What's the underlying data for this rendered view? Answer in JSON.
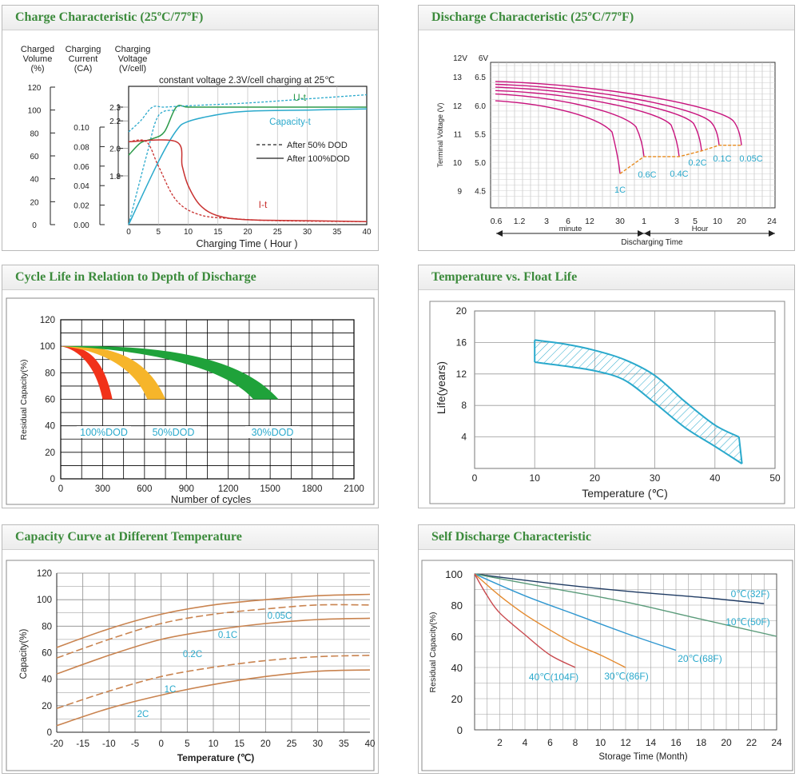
{
  "colors": {
    "title_green": "#3c8b3c",
    "grid": "#7a7a7a",
    "teal": "#2aa9cc",
    "magenta": "#c8137d",
    "orange": "#e88b1e",
    "copper": "#c9834f",
    "red": "#c8302f",
    "green": "#2d9a4a",
    "navy": "#1f3b63"
  },
  "chart_data": [
    {
      "id": "charge",
      "type": "line",
      "title": "Charge Characteristic (25ºC/77ºF)",
      "header_cols": [
        [
          "Charged",
          "Volume",
          "(%)"
        ],
        [
          "Charging",
          "Current",
          "(CA)"
        ],
        [
          "Charging",
          "Voltage",
          "(V/cell)"
        ]
      ],
      "subtitle": "constant voltage 2.3V/cell charging at 25℃",
      "xlabel": "Charging Time ( Hour )",
      "x_ticks": [
        "0",
        "5",
        "10",
        "15",
        "20",
        "25",
        "30",
        "35",
        "40"
      ],
      "volume_ticks": [
        "120",
        "100",
        "80",
        "60",
        "40",
        "20",
        "0"
      ],
      "current_ticks": [
        "0.10",
        "0.08",
        "0.06",
        "0.04",
        "0.02",
        "0.00"
      ],
      "voltage_ticks": [
        "2.3",
        "2.2",
        "2.0",
        "1.8"
      ],
      "xlim": [
        0,
        40
      ],
      "curve_labels": {
        "voltage": "U-t",
        "capacity": "Capacity-t",
        "current": "I-t"
      },
      "legend": [
        "After 50% DOD",
        "After 100%DOD"
      ],
      "series": [
        {
          "name": "U-t (100% DOD)",
          "x": [
            0,
            2,
            4,
            6,
            8,
            10,
            15,
            20,
            30,
            40
          ],
          "y_volts": [
            1.95,
            2.04,
            2.07,
            2.12,
            2.3,
            2.3,
            2.3,
            2.3,
            2.3,
            2.3
          ]
        },
        {
          "name": "U-t (50% DOD)",
          "x": [
            0,
            2,
            4,
            6,
            10,
            20,
            30,
            40
          ],
          "y_volts": [
            2.12,
            2.2,
            2.3,
            2.3,
            2.31,
            2.33,
            2.36,
            2.39
          ]
        },
        {
          "name": "Capacity-t (100% DOD)",
          "x": [
            0,
            5,
            8,
            10,
            15,
            20,
            30,
            40
          ],
          "y_pct": [
            0,
            55,
            82,
            90,
            96,
            99,
            100,
            101
          ]
        },
        {
          "name": "Capacity-t (50% DOD)",
          "x": [
            0,
            3,
            5,
            8
          ],
          "y_pct": [
            0,
            60,
            95,
            100
          ]
        },
        {
          "name": "I-t (100% DOD)",
          "x": [
            0,
            8,
            9,
            10,
            12,
            15,
            20,
            30,
            40
          ],
          "y_ca": [
            0.085,
            0.085,
            0.06,
            0.04,
            0.02,
            0.009,
            0.005,
            0.004,
            0.003
          ]
        },
        {
          "name": "I-t (50% DOD)",
          "x": [
            0,
            3,
            5,
            8,
            12,
            18,
            25,
            40
          ],
          "y_ca": [
            0.085,
            0.085,
            0.06,
            0.025,
            0.01,
            0.006,
            0.004,
            0.003
          ]
        }
      ]
    },
    {
      "id": "discharge",
      "type": "line",
      "title": "Discharge Characteristic (25ºC/77ºF)",
      "ylabel": "Terminal Voltage (V)",
      "axis_head": [
        "12V",
        "6V"
      ],
      "y_ticks_12v": [
        "13",
        "12",
        "11",
        "10",
        "9"
      ],
      "y_ticks_6v": [
        "6.5",
        "6.0",
        "5.5",
        "5.0",
        "4.5"
      ],
      "ylim_6v": [
        4.2,
        6.7
      ],
      "x_ticks": [
        "0.6",
        "1.2",
        "3",
        "6",
        "12",
        "30",
        "1",
        "3",
        "5",
        "10",
        "20",
        "24"
      ],
      "x_units": [
        "minute",
        "Hour"
      ],
      "xlabel": "Discharging Time",
      "rate_labels": [
        "1C",
        "0.6C",
        "0.4C",
        "0.2C",
        "0.1C",
        "0.05C"
      ],
      "end_voltage_6v": [
        4.8,
        5.1,
        5.1,
        5.2,
        5.3,
        5.3
      ]
    },
    {
      "id": "cycle",
      "type": "area",
      "title": "Cycle Life in Relation to Depth of Discharge",
      "xlabel": "Number of cycles",
      "ylabel": "Residual Capacity(%)",
      "x_ticks": [
        "0",
        "300",
        "600",
        "900",
        "1200",
        "1500",
        "1800",
        "2100"
      ],
      "y_ticks": [
        "120",
        "100",
        "80",
        "60",
        "40",
        "20",
        "0"
      ],
      "xlim": [
        0,
        2100
      ],
      "ylim": [
        0,
        120
      ],
      "series": [
        {
          "name": "100%DOD",
          "end_cycles": [
            300,
            370
          ]
        },
        {
          "name": "50%DOD",
          "end_cycles": [
            620,
            750
          ]
        },
        {
          "name": "30%DOD",
          "end_cycles": [
            1380,
            1560
          ]
        }
      ]
    },
    {
      "id": "float",
      "type": "area",
      "title": "Temperature vs. Float Life",
      "xlabel": "Temperature (℃)",
      "ylabel": "Life(years)",
      "x_ticks": [
        "0",
        "10",
        "20",
        "30",
        "40",
        "50"
      ],
      "y_ticks": [
        "20",
        "16",
        "12",
        "8",
        "4"
      ],
      "xlim": [
        0,
        50
      ],
      "ylim": [
        0,
        20
      ],
      "upper": {
        "x": [
          10,
          15,
          20,
          25,
          30,
          35,
          40,
          44
        ],
        "y": [
          16.3,
          15.8,
          15,
          13.8,
          11.8,
          8.5,
          5.5,
          4
        ]
      },
      "lower": {
        "x": [
          10,
          15,
          20,
          25,
          30,
          35,
          40,
          44.5
        ],
        "y": [
          13.5,
          13,
          12.4,
          11.2,
          8.3,
          5.2,
          2.8,
          0.6
        ]
      }
    },
    {
      "id": "temperature",
      "type": "line",
      "title": "Capacity Curve at Different Temperature",
      "xlabel": "Temperature (℃)",
      "ylabel": "Capacity(%)",
      "x_ticks": [
        "-20",
        "-15",
        "-10",
        "-5",
        "0",
        "5",
        "10",
        "15",
        "20",
        "25",
        "30",
        "35",
        "40"
      ],
      "y_ticks": [
        "120",
        "100",
        "80",
        "60",
        "40",
        "20",
        "0"
      ],
      "xlim": [
        -20,
        40
      ],
      "ylim": [
        0,
        120
      ],
      "series": [
        {
          "name": "0.05C",
          "x": [
            -20,
            -10,
            0,
            10,
            20,
            30,
            40
          ],
          "y": [
            64,
            78,
            89,
            96,
            100,
            103,
            104
          ]
        },
        {
          "name": "0.1C",
          "x": [
            -20,
            -10,
            0,
            10,
            20,
            30,
            40
          ],
          "y": [
            56,
            70,
            82,
            89,
            93,
            96,
            96
          ]
        },
        {
          "name": "0.2C",
          "x": [
            -20,
            -10,
            0,
            10,
            20,
            30,
            40
          ],
          "y": [
            44,
            58,
            70,
            77,
            82,
            85,
            86
          ]
        },
        {
          "name": "1C",
          "x": [
            -20,
            -10,
            0,
            10,
            20,
            30,
            40
          ],
          "y": [
            18,
            31,
            42,
            49,
            54,
            57,
            58
          ]
        },
        {
          "name": "2C",
          "x": [
            -20,
            -10,
            0,
            10,
            20,
            30,
            40
          ],
          "y": [
            5,
            18,
            28,
            36,
            42,
            46,
            47
          ]
        }
      ]
    },
    {
      "id": "self",
      "type": "line",
      "title": "Self Discharge Characteristic",
      "xlabel": "Storage Time (Month)",
      "ylabel": "Residual Capacity(%)",
      "x_ticks": [
        "2",
        "4",
        "6",
        "8",
        "10",
        "12",
        "14",
        "16",
        "18",
        "20",
        "22",
        "24"
      ],
      "y_ticks": [
        "100",
        "80",
        "60",
        "40",
        "20",
        "0"
      ],
      "xlim": [
        0,
        24
      ],
      "ylim": [
        0,
        100
      ],
      "series": [
        {
          "name": "0℃(32F)",
          "x": [
            0,
            6,
            12,
            18,
            23
          ],
          "y": [
            100,
            94,
            89,
            85,
            81
          ]
        },
        {
          "name": "10℃(50F)",
          "x": [
            0,
            6,
            12,
            18,
            24
          ],
          "y": [
            100,
            91,
            82,
            71,
            60
          ]
        },
        {
          "name": "20℃(68F)",
          "x": [
            0,
            4,
            8,
            12,
            16
          ],
          "y": [
            100,
            86,
            74,
            62,
            51
          ]
        },
        {
          "name": "30℃(86F)",
          "x": [
            0,
            2,
            4,
            6,
            8,
            10,
            12
          ],
          "y": [
            100,
            86,
            74,
            64,
            55,
            48,
            40
          ]
        },
        {
          "name": "40℃(104F)",
          "x": [
            0,
            1,
            2,
            4,
            6,
            8
          ],
          "y": [
            100,
            86,
            75,
            61,
            48,
            40
          ]
        }
      ]
    }
  ]
}
